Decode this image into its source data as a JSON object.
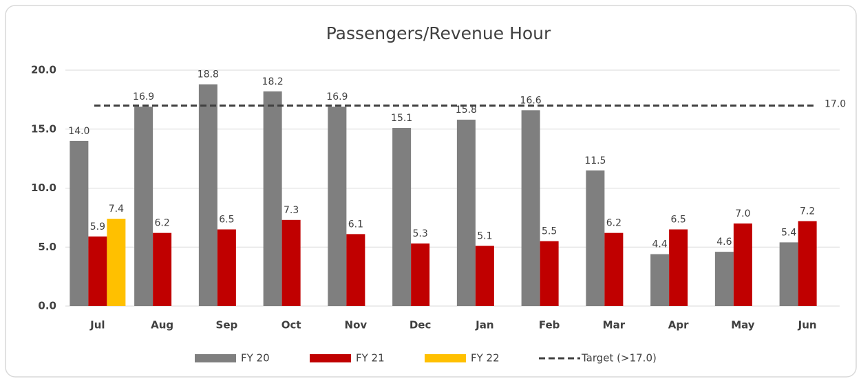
{
  "chart_data": {
    "type": "bar",
    "title": "Passengers/Revenue Hour",
    "categories": [
      "Jul",
      "Aug",
      "Sep",
      "Oct",
      "Nov",
      "Dec",
      "Jan",
      "Feb",
      "Mar",
      "Apr",
      "May",
      "Jun"
    ],
    "series": [
      {
        "name": "FY 20",
        "color": "#7f7f7f",
        "values": [
          14.0,
          16.9,
          18.8,
          18.2,
          16.9,
          15.1,
          15.8,
          16.6,
          11.5,
          4.4,
          4.6,
          5.4
        ],
        "value_labels": [
          "14.0",
          "16.9",
          "18.8",
          "18.2",
          "16.9",
          "15.1",
          "15.8",
          "16.6",
          "11.5",
          "4.4",
          "4.6",
          "5.4"
        ]
      },
      {
        "name": "FY 21",
        "color": "#c00000",
        "values": [
          5.9,
          6.2,
          6.5,
          7.3,
          6.1,
          5.3,
          5.1,
          5.5,
          6.2,
          6.5,
          7.0,
          7.2
        ],
        "value_labels": [
          "5.9",
          "6.2",
          "6.5",
          "7.3",
          "6.1",
          "5.3",
          "5.1",
          "5.5",
          "6.2",
          "6.5",
          "7.0",
          "7.2"
        ]
      },
      {
        "name": "FY 22",
        "color": "#ffc000",
        "values": [
          7.4,
          null,
          null,
          null,
          null,
          null,
          null,
          null,
          null,
          null,
          null,
          null
        ],
        "value_labels": [
          "7.4",
          null,
          null,
          null,
          null,
          null,
          null,
          null,
          null,
          null,
          null,
          null
        ]
      }
    ],
    "target": {
      "name": "Target (>17.0)",
      "value": 17,
      "value_label": "17.0",
      "color": "#404040"
    },
    "ylim": [
      0,
      20
    ],
    "yticks": [
      {
        "value": 0,
        "label": "0.0"
      },
      {
        "value": 5,
        "label": "5.0"
      },
      {
        "value": 10,
        "label": "10.0"
      },
      {
        "value": 15,
        "label": "15.0"
      },
      {
        "value": 20,
        "label": "20.0"
      }
    ],
    "grid": true,
    "legend": "bottom"
  }
}
